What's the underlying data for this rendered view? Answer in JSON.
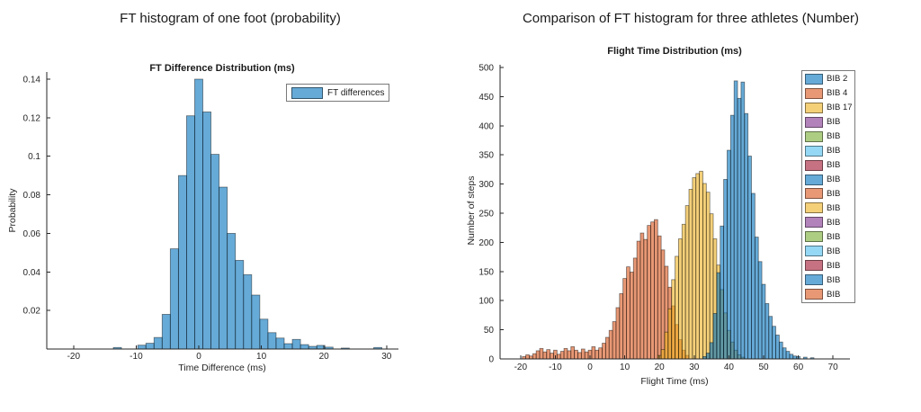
{
  "page": {
    "background": "#ffffff"
  },
  "chart_data": [
    {
      "type": "bar",
      "suptitle": "FT histogram of one foot (probability)",
      "title": "FT Difference Distribution (ms)",
      "xlabel": "Time Difference (ms)",
      "ylabel": "Probability",
      "xlim": [
        -24.3,
        31.9
      ],
      "ylim": [
        0,
        0.1455
      ],
      "xticks": [
        -20,
        -10,
        0,
        10,
        20,
        30
      ],
      "yticks": [
        0.02,
        0.04,
        0.06,
        0.08,
        0.1,
        0.12,
        0.14
      ],
      "grid": false,
      "legend_position": "top-right-inside",
      "bin_width_ms": 1.3,
      "legend": [
        {
          "label": "FT differences",
          "swatch_color": "#66AAD7"
        }
      ],
      "series": [
        {
          "name": "FT differences",
          "color": "#0072BD",
          "alpha": 0.6,
          "bars": [
            [
              -13.0,
              0.0008
            ],
            [
              -9.1,
              0.002
            ],
            [
              -7.8,
              0.003
            ],
            [
              -6.5,
              0.006
            ],
            [
              -5.2,
              0.018
            ],
            [
              -3.9,
              0.052
            ],
            [
              -2.6,
              0.09
            ],
            [
              -1.3,
              0.121
            ],
            [
              0.0,
              0.14
            ],
            [
              1.3,
              0.123
            ],
            [
              2.6,
              0.101
            ],
            [
              3.9,
              0.084
            ],
            [
              5.2,
              0.06
            ],
            [
              6.5,
              0.046
            ],
            [
              7.8,
              0.0386
            ],
            [
              9.1,
              0.028
            ],
            [
              10.4,
              0.0155
            ],
            [
              11.7,
              0.0085
            ],
            [
              13.0,
              0.0057
            ],
            [
              14.3,
              0.0028
            ],
            [
              15.6,
              0.005
            ],
            [
              16.9,
              0.0023
            ],
            [
              18.2,
              0.0014
            ],
            [
              19.5,
              0.0019
            ],
            [
              20.8,
              0.001
            ],
            [
              23.4,
              0.0005
            ],
            [
              28.6,
              0.0008
            ]
          ]
        }
      ]
    },
    {
      "type": "bar",
      "suptitle": "Comparison of FT histogram for three athletes (Number)",
      "title": "Flight Time Distribution (ms)",
      "xlabel": "Flight Time (ms)",
      "ylabel": "Number of steps",
      "xlim": [
        -26,
        75
      ],
      "ylim": [
        0,
        500
      ],
      "xticks": [
        -20,
        -10,
        0,
        10,
        20,
        30,
        40,
        50,
        60,
        70
      ],
      "yticks": [
        0,
        50,
        100,
        150,
        200,
        250,
        300,
        350,
        400,
        450,
        500
      ],
      "grid": false,
      "legend_position": "top-right-inside",
      "bin_width_ms": 1.0,
      "legend": [
        {
          "label": "BIB 2",
          "swatch_color": "#66AAD7"
        },
        {
          "label": "BIB 4",
          "swatch_color": "#E89875"
        },
        {
          "label": "BIB 17",
          "swatch_color": "#F4D079"
        },
        {
          "label": "BIB",
          "swatch_color": "#B282BB"
        },
        {
          "label": "BIB",
          "swatch_color": "#ADCD83"
        },
        {
          "label": "BIB",
          "swatch_color": "#94D8F5"
        },
        {
          "label": "BIB",
          "swatch_color": "#C77282"
        },
        {
          "label": "BIB",
          "swatch_color": "#66AAD7"
        },
        {
          "label": "BIB",
          "swatch_color": "#E89875"
        },
        {
          "label": "BIB",
          "swatch_color": "#F4D079"
        },
        {
          "label": "BIB",
          "swatch_color": "#B282BB"
        },
        {
          "label": "BIB",
          "swatch_color": "#ADCD83"
        },
        {
          "label": "BIB",
          "swatch_color": "#94D8F5"
        },
        {
          "label": "BIB",
          "swatch_color": "#C77282"
        },
        {
          "label": "BIB",
          "swatch_color": "#66AAD7"
        },
        {
          "label": "BIB",
          "swatch_color": "#E89875"
        }
      ],
      "series": [
        {
          "name": "BIB 4",
          "color": "#D95319",
          "alpha": 0.6,
          "bars": [
            [
              -19,
              4
            ],
            [
              -18,
              7
            ],
            [
              -17,
              5
            ],
            [
              -16,
              9
            ],
            [
              -15,
              14
            ],
            [
              -14,
              18
            ],
            [
              -13,
              12
            ],
            [
              -12,
              16
            ],
            [
              -11,
              10
            ],
            [
              -10,
              15
            ],
            [
              -9,
              8
            ],
            [
              -8,
              13
            ],
            [
              -7,
              18
            ],
            [
              -6,
              14
            ],
            [
              -5,
              21
            ],
            [
              -4,
              15
            ],
            [
              -3,
              11
            ],
            [
              -2,
              17
            ],
            [
              -1,
              12
            ],
            [
              0,
              15
            ],
            [
              1,
              21
            ],
            [
              2,
              15
            ],
            [
              3,
              19
            ],
            [
              4,
              27
            ],
            [
              5,
              37
            ],
            [
              6,
              49
            ],
            [
              7,
              64
            ],
            [
              8,
              88
            ],
            [
              9,
              112
            ],
            [
              10,
              138
            ],
            [
              11,
              158
            ],
            [
              12,
              149
            ],
            [
              13,
              173
            ],
            [
              14,
              202
            ],
            [
              15,
              216
            ],
            [
              16,
              205
            ],
            [
              17,
              229
            ],
            [
              18,
              235
            ],
            [
              19,
              239
            ],
            [
              20,
              211
            ],
            [
              21,
              187
            ],
            [
              22,
              159
            ],
            [
              23,
              123
            ],
            [
              24,
              91
            ],
            [
              25,
              59
            ],
            [
              26,
              33
            ],
            [
              27,
              15
            ],
            [
              28,
              6
            ]
          ]
        },
        {
          "name": "BIB 17",
          "color": "#EDB120",
          "alpha": 0.6,
          "bars": [
            [
              20,
              6
            ],
            [
              21,
              16
            ],
            [
              22,
              46
            ],
            [
              23,
              86
            ],
            [
              24,
              136
            ],
            [
              25,
              176
            ],
            [
              26,
              206
            ],
            [
              27,
              231
            ],
            [
              28,
              263
            ],
            [
              29,
              291
            ],
            [
              30,
              311
            ],
            [
              31,
              318
            ],
            [
              32,
              322
            ],
            [
              33,
              301
            ],
            [
              34,
              286
            ],
            [
              35,
              249
            ],
            [
              36,
              206
            ],
            [
              37,
              161
            ],
            [
              38,
              119
            ],
            [
              39,
              79
            ],
            [
              40,
              49
            ],
            [
              41,
              29
            ],
            [
              42,
              15
            ],
            [
              43,
              7
            ],
            [
              44,
              3
            ]
          ]
        },
        {
          "name": "BIB 2",
          "color": "#0072BD",
          "alpha": 0.6,
          "bars": [
            [
              33,
              4
            ],
            [
              34,
              10
            ],
            [
              35,
              28
            ],
            [
              36,
              78
            ],
            [
              37,
              148
            ],
            [
              38,
              228
            ],
            [
              39,
              308
            ],
            [
              40,
              358
            ],
            [
              41,
              418
            ],
            [
              42,
              477
            ],
            [
              43,
              447
            ],
            [
              44,
              475
            ],
            [
              45,
              421
            ],
            [
              46,
              348
            ],
            [
              47,
              284
            ],
            [
              48,
              209
            ],
            [
              49,
              167
            ],
            [
              50,
              128
            ],
            [
              51,
              95
            ],
            [
              52,
              73
            ],
            [
              53,
              56
            ],
            [
              54,
              41
            ],
            [
              55,
              29
            ],
            [
              56,
              19
            ],
            [
              57,
              13
            ],
            [
              58,
              8
            ],
            [
              59,
              5
            ],
            [
              60,
              4
            ],
            [
              62,
              3
            ],
            [
              64,
              2
            ]
          ]
        }
      ]
    }
  ]
}
